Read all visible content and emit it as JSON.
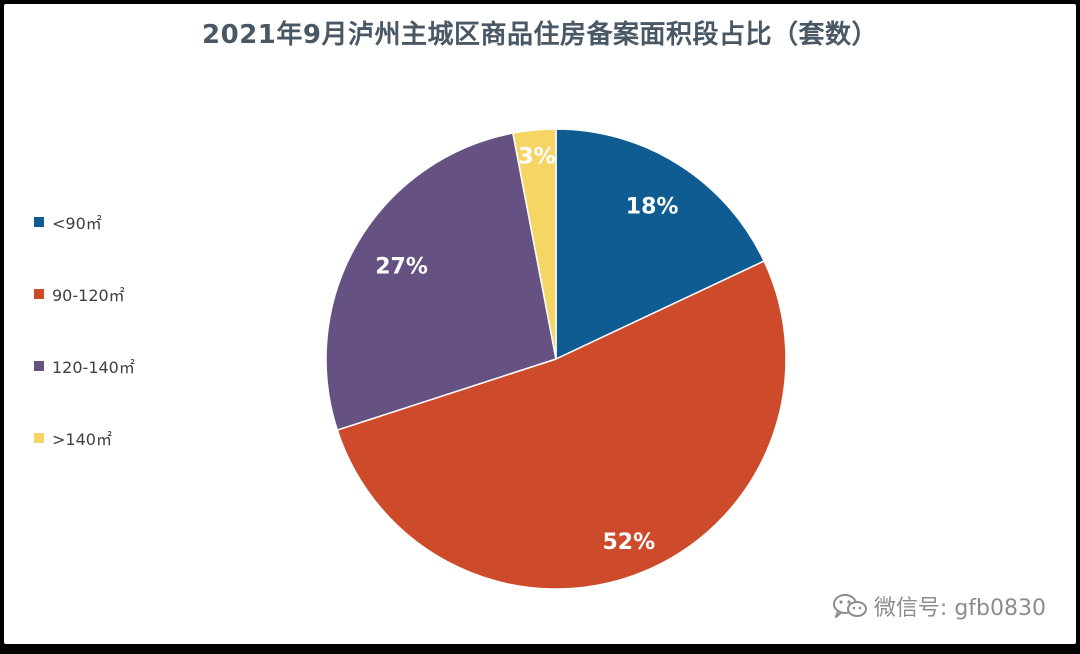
{
  "chart_data": {
    "type": "pie",
    "title": "2021年9月泸州主城区商品住房备案面积段占比（套数）",
    "categories": [
      "<90㎡",
      "90-120㎡",
      "120-140㎡",
      ">140㎡"
    ],
    "values": [
      18,
      52,
      27,
      3
    ],
    "value_labels": [
      "18%",
      "52%",
      "27%",
      "3%"
    ],
    "colors": [
      "#0e5c91",
      "#cd4b2a",
      "#655282",
      "#f5d564"
    ],
    "legend_position": "left",
    "start_angle": "12 o'clock",
    "direction": "clockwise"
  },
  "watermark": {
    "text": "微信号: gfb0830",
    "icon": "wechat-icon"
  }
}
